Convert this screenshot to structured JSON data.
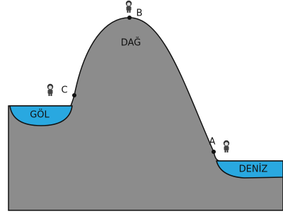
{
  "labels": {
    "peak": "B",
    "mountain": "DAĞ",
    "left_point": "C",
    "lake": "GÖL",
    "right_point": "A",
    "sea": "DENİZ"
  }
}
